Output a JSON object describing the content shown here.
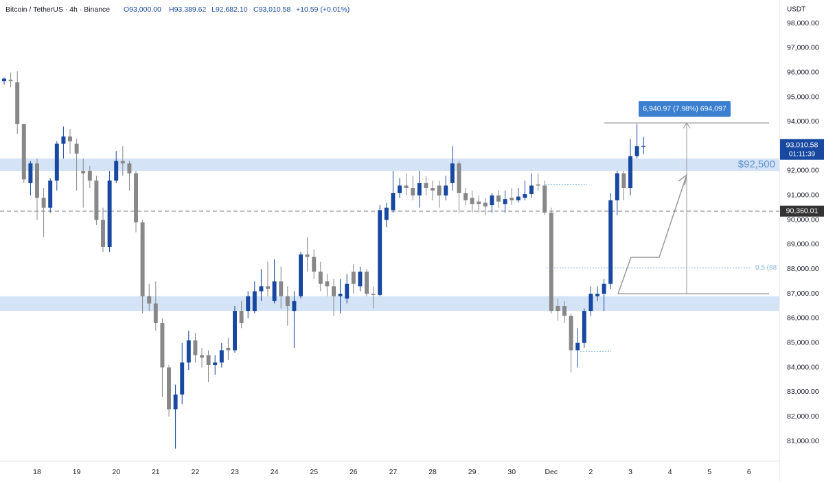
{
  "chart_data": {
    "type": "candlestick",
    "header": {
      "symbol": "Bitcoin / TetherUS · 4h · Binance",
      "open": "O93,000.00",
      "high": "H93,389.62",
      "low": "L92,682.10",
      "close": "C93,010.58",
      "change": "+10.59 (+0.01%)"
    },
    "currency": "USDT",
    "up_color": "#1848a0",
    "down_color": "#888888",
    "open": [
      95650,
      95700,
      95600,
      93900,
      91500,
      92300,
      90900,
      90500,
      91600,
      93100,
      93400,
      93100,
      92000,
      92000,
      91600,
      90000,
      88900,
      91600,
      92400,
      92300,
      91900,
      89900,
      86900,
      86600,
      85800,
      84000,
      82300,
      82900,
      84200,
      85100,
      84500,
      84500,
      84100,
      84200,
      84800,
      84700,
      86300,
      86300,
      86300,
      87100,
      87300,
      86700,
      87500,
      86900,
      86300,
      86900,
      88600,
      88500,
      87900,
      87500,
      87300,
      86900,
      86800,
      87900,
      87300,
      87900,
      87000,
      86950,
      90000,
      90400,
      91100,
      91400,
      91300,
      91000,
      91500,
      91300,
      91400,
      91000,
      91500,
      92300,
      91100,
      90900,
      90750,
      90700,
      90600,
      91000,
      90650,
      90900,
      90800,
      90900,
      91050,
      91450,
      91400,
      90300,
      86500,
      86500,
      86100,
      84700,
      85000,
      86300,
      86900,
      87000,
      87400,
      90800,
      91900,
      91300,
      92600,
      93000
    ],
    "high": [
      95800,
      96000,
      96050,
      93900,
      92400,
      92500,
      91300,
      91700,
      93200,
      93800,
      93700,
      93300,
      92500,
      92200,
      91800,
      90500,
      92000,
      92800,
      93000,
      92400,
      92000,
      90000,
      87400,
      87500,
      86000,
      84100,
      83300,
      85000,
      85500,
      85400,
      84800,
      84700,
      84500,
      85000,
      85200,
      86500,
      86700,
      87100,
      87500,
      88000,
      88300,
      88400,
      88100,
      87300,
      87100,
      88700,
      89300,
      88800,
      88300,
      87800,
      87600,
      87600,
      87800,
      88200,
      88100,
      88000,
      87300,
      90600,
      90700,
      92000,
      91700,
      91900,
      91800,
      92000,
      91800,
      91600,
      91600,
      91800,
      93000,
      92400,
      91300,
      91200,
      91000,
      90900,
      91100,
      91200,
      91200,
      91300,
      91300,
      91600,
      91900,
      91900,
      91600,
      90500,
      86800,
      86700,
      86200,
      85600,
      86400,
      87300,
      87300,
      87600,
      91100,
      92000,
      92000,
      93300,
      93900,
      93389.62
    ],
    "low": [
      95500,
      95400,
      93500,
      91500,
      91000,
      90000,
      89300,
      90300,
      91200,
      92500,
      92700,
      91200,
      90500,
      91300,
      89800,
      88700,
      88700,
      91500,
      91800,
      91200,
      89500,
      86200,
      86300,
      85500,
      82800,
      82000,
      80700,
      82500,
      83900,
      84200,
      84000,
      83400,
      83700,
      84000,
      84300,
      84600,
      85600,
      86000,
      86200,
      86700,
      86900,
      86600,
      86400,
      85700,
      84800,
      86800,
      87900,
      87600,
      87100,
      86900,
      86100,
      86200,
      86600,
      87000,
      87100,
      86900,
      86400,
      86900,
      89700,
      90300,
      90900,
      91000,
      90800,
      90500,
      91000,
      90800,
      90500,
      90800,
      91200,
      90300,
      90600,
      90300,
      90300,
      90200,
      90300,
      90500,
      90300,
      90600,
      90700,
      90800,
      90900,
      91200,
      90200,
      86200,
      85900,
      85800,
      83800,
      84000,
      84800,
      86100,
      86700,
      86300,
      87200,
      90200,
      90800,
      91000,
      92500,
      92682.1
    ],
    "close": [
      95750,
      95650,
      93900,
      91650,
      92300,
      90900,
      90500,
      91600,
      93100,
      93400,
      93200,
      92700,
      91900,
      91600,
      90000,
      88900,
      91600,
      92400,
      92300,
      91900,
      89900,
      86900,
      86600,
      85800,
      84000,
      82300,
      82900,
      84200,
      85100,
      84500,
      84400,
      84100,
      84200,
      84700,
      84700,
      86300,
      85800,
      86900,
      87100,
      87300,
      87200,
      87500,
      86900,
      86500,
      86700,
      88600,
      88500,
      87900,
      87400,
      87300,
      86900,
      87000,
      87400,
      87400,
      87900,
      87000,
      86950,
      90400,
      90500,
      91100,
      91400,
      91300,
      91000,
      91500,
      91300,
      91200,
      91000,
      91400,
      92300,
      91100,
      90800,
      90650,
      90650,
      90550,
      91000,
      90750,
      90850,
      90800,
      90950,
      91050,
      91400,
      91400,
      90300,
      86300,
      86300,
      86100,
      84700,
      85000,
      86300,
      87000,
      87000,
      87400,
      90800,
      91900,
      91300,
      92600,
      93000,
      93010.58
    ],
    "xlim": [
      -0.625,
      117.6
    ],
    "xticks": [
      {
        "value": 5,
        "label": "18"
      },
      {
        "value": 11,
        "label": "19"
      },
      {
        "value": 17,
        "label": "20"
      },
      {
        "value": 23,
        "label": "21"
      },
      {
        "value": 29,
        "label": "22"
      },
      {
        "value": 35,
        "label": "23"
      },
      {
        "value": 41,
        "label": "24"
      },
      {
        "value": 47,
        "label": "25"
      },
      {
        "value": 53,
        "label": "26"
      },
      {
        "value": 59,
        "label": "27"
      },
      {
        "value": 65,
        "label": "28"
      },
      {
        "value": 71,
        "label": "29"
      },
      {
        "value": 77,
        "label": "30"
      },
      {
        "value": 83,
        "label": "Dec"
      },
      {
        "value": 89,
        "label": "2"
      },
      {
        "value": 95,
        "label": "3"
      },
      {
        "value": 101,
        "label": "4"
      },
      {
        "value": 107,
        "label": "5"
      },
      {
        "value": 113,
        "label": "6"
      }
    ],
    "ylim": [
      80190,
      98950
    ],
    "yticks": [
      {
        "value": 81000,
        "label": "81,000.00"
      },
      {
        "value": 82000,
        "label": "82,000.00"
      },
      {
        "value": 83000,
        "label": "83,000.00"
      },
      {
        "value": 84000,
        "label": "84,000.00"
      },
      {
        "value": 85000,
        "label": "85,000.00"
      },
      {
        "value": 86000,
        "label": "86,000.00"
      },
      {
        "value": 87000,
        "label": "87,000.00"
      },
      {
        "value": 88000,
        "label": "88,000.00"
      },
      {
        "value": 89000,
        "label": "89,000.00"
      },
      {
        "value": 90000,
        "label": "90,000.00"
      },
      {
        "value": 91000,
        "label": "91,000.00"
      },
      {
        "value": 92000,
        "label": "92,000.00"
      },
      {
        "value": 93000,
        "label": "93,000.00"
      },
      {
        "value": 94000,
        "label": "94,000.00"
      },
      {
        "value": 95000,
        "label": "95,000.00"
      },
      {
        "value": 96000,
        "label": "96,000.00"
      },
      {
        "value": 97000,
        "label": "97,000.00"
      },
      {
        "value": 98000,
        "label": "98,000.00"
      }
    ],
    "grid": false,
    "zones": [
      {
        "low": 92000,
        "high": 92500,
        "label": "$92,500"
      },
      {
        "low": 86300,
        "high": 86900
      }
    ],
    "hline": {
      "value": 90360.01,
      "label": "90,360.01"
    },
    "last_price": {
      "value": 93010.58,
      "label": "93,010.58",
      "countdown": "01:11:39"
    },
    "levels": [
      {
        "value": 91450
      },
      {
        "value": 84650
      },
      {
        "value": 88050,
        "label": "0.5 (88"
      }
    ],
    "measure": {
      "from": 87000,
      "to": 93950,
      "label": "6,940.97 (7.98%) 694,097"
    }
  }
}
